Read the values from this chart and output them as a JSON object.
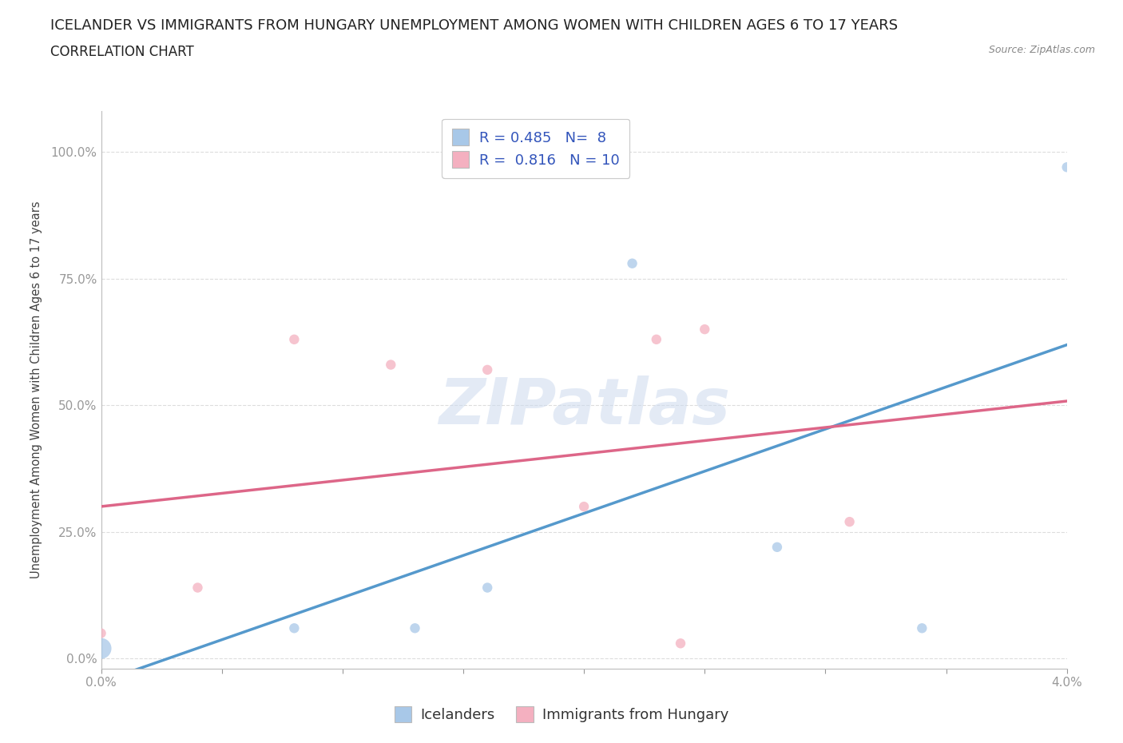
{
  "title_line1": "ICELANDER VS IMMIGRANTS FROM HUNGARY UNEMPLOYMENT AMONG WOMEN WITH CHILDREN AGES 6 TO 17 YEARS",
  "title_line2": "CORRELATION CHART",
  "source_text": "Source: ZipAtlas.com",
  "ylabel_label": "Unemployment Among Women with Children Ages 6 to 17 years",
  "watermark": "ZIPatlas",
  "xlim": [
    0.0,
    0.04
  ],
  "ylim": [
    -0.02,
    1.08
  ],
  "xticks": [
    0.0,
    0.005,
    0.01,
    0.015,
    0.02,
    0.025,
    0.03,
    0.035,
    0.04
  ],
  "xtick_labels": [
    "0.0%",
    "",
    "",
    "",
    "",
    "",
    "",
    "",
    "4.0%"
  ],
  "yticks": [
    0.0,
    0.25,
    0.5,
    0.75,
    1.0
  ],
  "ytick_labels": [
    "0.0%",
    "25.0%",
    "50.0%",
    "75.0%",
    "100.0%"
  ],
  "icelanders_x": [
    0.0,
    0.008,
    0.013,
    0.016,
    0.022,
    0.034,
    0.028,
    0.04
  ],
  "icelanders_y": [
    0.02,
    0.06,
    0.06,
    0.14,
    0.78,
    0.06,
    0.22,
    0.97
  ],
  "hungary_x": [
    0.0,
    0.004,
    0.008,
    0.012,
    0.016,
    0.02,
    0.024,
    0.023,
    0.025,
    0.031
  ],
  "hungary_y": [
    0.05,
    0.14,
    0.63,
    0.58,
    0.57,
    0.3,
    0.03,
    0.63,
    0.65,
    0.27
  ],
  "icelanders_color": "#a8c8e8",
  "hungary_color": "#f4b0c0",
  "icelanders_line_color": "#5599cc",
  "hungary_line_color": "#dd6688",
  "R_icelanders": 0.485,
  "N_icelanders": 8,
  "R_hungary": 0.816,
  "N_hungary": 10,
  "legend_icelanders": "Icelanders",
  "legend_hungary": "Immigrants from Hungary",
  "background_color": "#ffffff",
  "grid_color": "#dddddd",
  "title_fontsize": 13,
  "subtitle_fontsize": 12,
  "axis_label_fontsize": 10.5,
  "tick_fontsize": 11,
  "legend_fontsize": 13
}
